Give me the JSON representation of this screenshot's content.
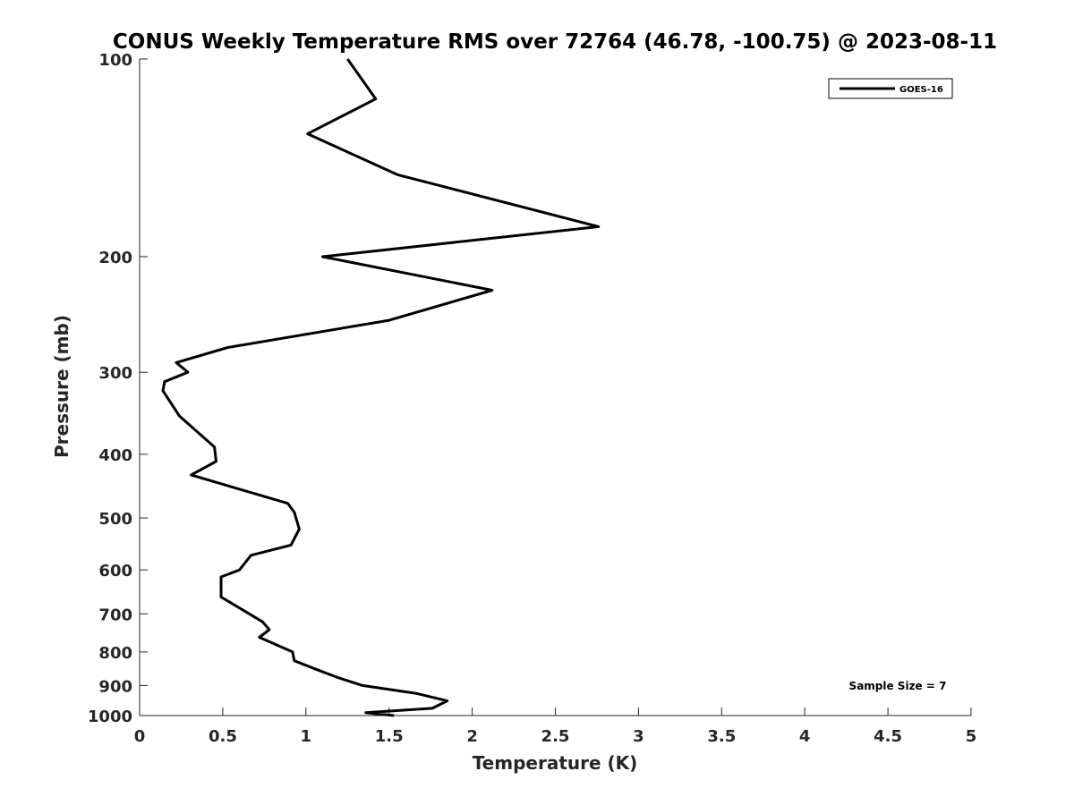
{
  "chart_data": {
    "type": "line",
    "title": "CONUS Weekly Temperature RMS over 72764 (46.78, -100.75) @ 2023-08-11",
    "xlabel": "Temperature (K)",
    "ylabel": "Pressure (mb)",
    "xlim": [
      0,
      5
    ],
    "ylim": [
      1000,
      100
    ],
    "y_scale": "log",
    "y_reversed": true,
    "x_ticks": [
      "0",
      "0.5",
      "1",
      "1.5",
      "2",
      "2.5",
      "3",
      "3.5",
      "4",
      "4.5",
      "5"
    ],
    "y_ticks": [
      "100",
      "200",
      "300",
      "400",
      "500",
      "600",
      "700",
      "800",
      "900",
      "1000"
    ],
    "grid": false,
    "legend_position": "top-right",
    "annotation": "Sample Size = 7",
    "series": [
      {
        "name": "GOES-16",
        "color": "#000000",
        "x": [
          1.25,
          1.42,
          1.01,
          1.55,
          2.76,
          1.1,
          2.12,
          1.5,
          0.53,
          0.22,
          0.29,
          0.15,
          0.14,
          0.24,
          0.45,
          0.46,
          0.31,
          0.89,
          0.93,
          0.96,
          0.91,
          0.67,
          0.6,
          0.49,
          0.49,
          0.66,
          0.74,
          0.78,
          0.72,
          0.92,
          0.93,
          1.06,
          1.19,
          1.34,
          1.66,
          1.85,
          1.76,
          1.36,
          1.53
        ],
        "y": [
          100,
          115,
          130,
          150,
          180,
          200,
          225,
          250,
          275,
          290,
          300,
          310,
          320,
          350,
          390,
          410,
          430,
          475,
          490,
          520,
          550,
          570,
          600,
          615,
          660,
          700,
          720,
          740,
          760,
          800,
          825,
          850,
          875,
          900,
          925,
          950,
          975,
          990,
          1000
        ]
      }
    ]
  }
}
